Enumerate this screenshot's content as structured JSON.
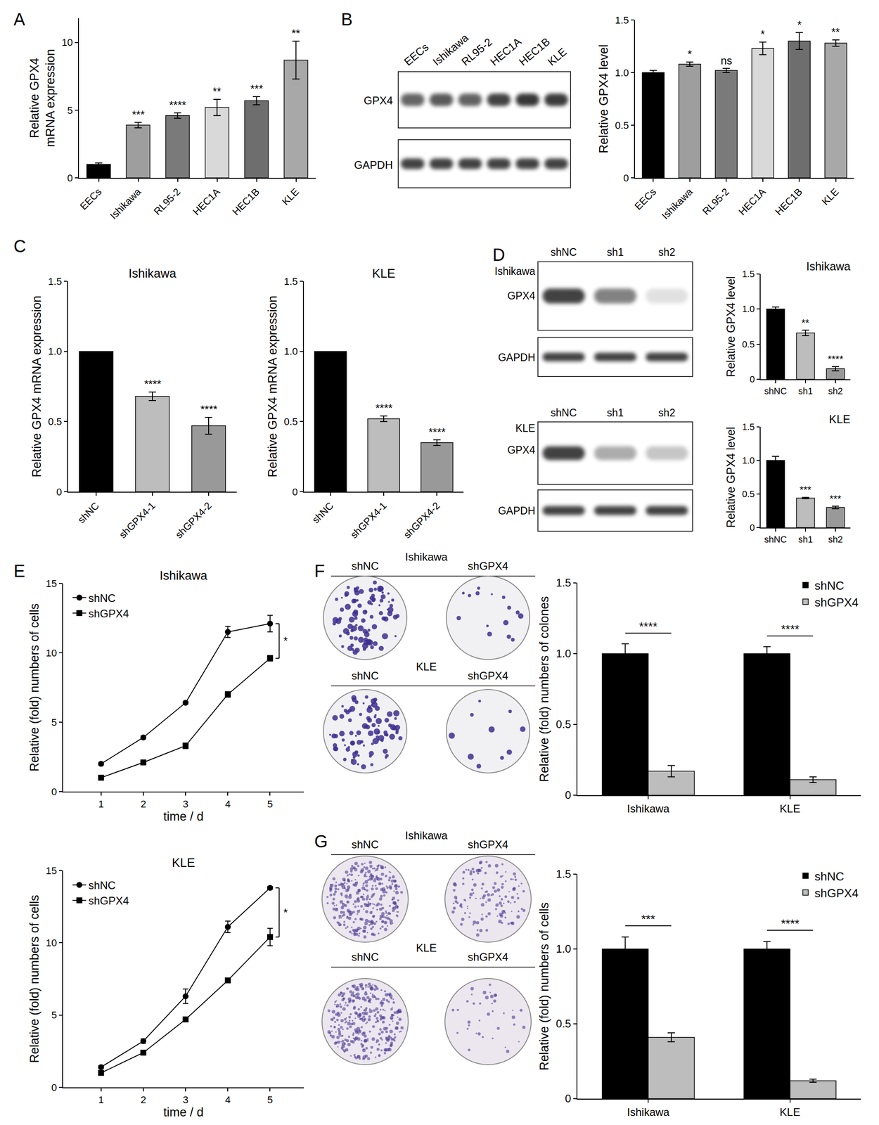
{
  "figure": {
    "panels": [
      "A",
      "B",
      "C",
      "D",
      "E",
      "F",
      "G"
    ],
    "blots": [
      {
        "lanes": [
          "EECs",
          "Ishikawa",
          "RL95-2",
          "HEC1A",
          "HEC1B",
          "KLE"
        ],
        "rows": [
          "GPX4",
          "GAPDH"
        ]
      },
      {
        "cell_line": "Ishikawa",
        "lanes": [
          "shNC",
          "sh1",
          "sh2"
        ],
        "rows": [
          "GPX4",
          "GAPDH"
        ]
      },
      {
        "cell_line": "KLE",
        "lanes": [
          "shNC",
          "sh1",
          "sh2"
        ],
        "rows": [
          "GPX4",
          "GAPDH"
        ]
      }
    ],
    "plates": [
      {
        "cell_line": "Ishikawa",
        "labels": [
          "shNC",
          "shGPX4"
        ]
      },
      {
        "cell_line": "KLE",
        "labels": [
          "shNC",
          "shGPX4"
        ]
      },
      {
        "cell_line": "Ishikawa",
        "labels": [
          "shNC",
          "shGPX4"
        ]
      },
      {
        "cell_line": "KLE",
        "labels": [
          "shNC",
          "shGPX4"
        ]
      }
    ]
  },
  "chart_data": [
    {
      "type": "bar",
      "ylabel": [
        "Relative GPX4",
        "mRNA expression"
      ],
      "categories": [
        "EECs",
        "Ishikawa",
        "RL95-2",
        "HEC1A",
        "HEC1B",
        "KLE"
      ],
      "values": [
        1.0,
        3.9,
        4.6,
        5.2,
        5.7,
        8.7
      ],
      "errors": [
        0.1,
        0.2,
        0.2,
        0.6,
        0.3,
        1.4
      ],
      "colors": [
        "#000000",
        "#9e9e9e",
        "#7a7a7a",
        "#d9d9d9",
        "#6e6e6e",
        "#a8a8a8"
      ],
      "annotations": [
        null,
        "***",
        "****",
        "**",
        "***",
        "**"
      ],
      "ylim": [
        0,
        11.8
      ],
      "yticks": [
        0,
        5,
        10
      ],
      "grid": false
    },
    {
      "type": "bar",
      "ylabel": "Relative GPX4 level",
      "categories": [
        "EECs",
        "Ishikawa",
        "RL95-2",
        "HEC1A",
        "HEC1B",
        "KLE"
      ],
      "values": [
        1.0,
        1.08,
        1.02,
        1.23,
        1.3,
        1.28
      ],
      "errors": [
        0.02,
        0.02,
        0.02,
        0.06,
        0.08,
        0.03
      ],
      "colors": [
        "#000000",
        "#9e9e9e",
        "#7a7a7a",
        "#d9d9d9",
        "#6e6e6e",
        "#a8a8a8"
      ],
      "annotations": [
        null,
        "*",
        "ns",
        "*",
        "*",
        "**"
      ],
      "ylim": [
        0,
        1.5
      ],
      "yticks": [
        0,
        0.5,
        {
          "value": 1,
          "label": "1.0"
        },
        1.5
      ],
      "grid": false
    },
    {
      "type": "bar",
      "title": "Ishikawa",
      "ylabel": "Relative GPX4 mRNA expression",
      "categories": [
        "shNC",
        "shGPX4-1",
        "shGPX4-2"
      ],
      "values": [
        1.0,
        0.68,
        0.47
      ],
      "errors": [
        null,
        0.03,
        0.06
      ],
      "colors": [
        "#000000",
        "#bdbdbd",
        "#999999"
      ],
      "annotations": [
        null,
        "****",
        "****"
      ],
      "ylim": [
        0,
        1.5
      ],
      "yticks": [
        0,
        0.5,
        {
          "value": 1,
          "label": "1.0"
        },
        1.5
      ],
      "grid": false
    },
    {
      "type": "bar",
      "title": "KLE",
      "ylabel": "Relative GPX4 mRNA expression",
      "categories": [
        "shNC",
        "shGPX4-1",
        "shGPX4-2"
      ],
      "values": [
        1.0,
        0.52,
        0.35
      ],
      "errors": [
        null,
        0.02,
        0.02
      ],
      "colors": [
        "#000000",
        "#bdbdbd",
        "#999999"
      ],
      "annotations": [
        null,
        "****",
        "****"
      ],
      "ylim": [
        0,
        1.5
      ],
      "yticks": [
        0,
        0.5,
        {
          "value": 1,
          "label": "1.0"
        },
        1.5
      ],
      "grid": false
    },
    {
      "type": "bar",
      "title": "Ishikawa",
      "ylabel": "Relative GPX4 level",
      "categories": [
        "shNC",
        "sh1",
        "sh2"
      ],
      "values": [
        1.0,
        0.66,
        0.15
      ],
      "errors": [
        0.03,
        0.04,
        0.03
      ],
      "colors": [
        "#000000",
        "#bdbdbd",
        "#999999"
      ],
      "annotations": [
        null,
        "**",
        "****"
      ],
      "ylim": [
        0,
        1.5
      ],
      "yticks": [
        0,
        0.5,
        {
          "value": 1,
          "label": "1.0"
        },
        1.5
      ],
      "grid": false
    },
    {
      "type": "bar",
      "title": "KLE",
      "ylabel": "Relative GPX4 level",
      "categories": [
        "shNC",
        "sh1",
        "sh2"
      ],
      "values": [
        1.0,
        0.44,
        0.3
      ],
      "errors": [
        0.06,
        0.01,
        0.02
      ],
      "colors": [
        "#000000",
        "#bdbdbd",
        "#999999"
      ],
      "annotations": [
        null,
        "***",
        "***"
      ],
      "ylim": [
        0,
        1.5
      ],
      "yticks": [
        0,
        0.5,
        {
          "value": 1,
          "label": "1.0"
        },
        1.5
      ],
      "grid": false
    },
    {
      "type": "line",
      "title": "Ishikawa",
      "xlabel": "time / d",
      "ylabel": "Relative (fold) numbers of cells",
      "x": [
        1,
        2,
        3,
        4,
        5
      ],
      "series": [
        {
          "name": "shNC",
          "color": "#000000",
          "marker": "circle",
          "values": [
            2.0,
            3.9,
            6.4,
            11.5,
            12.1
          ],
          "errors": [
            0.1,
            0.1,
            0.1,
            0.4,
            0.6
          ]
        },
        {
          "name": "shGPX4",
          "color": "#000000",
          "marker": "square",
          "values": [
            1.0,
            2.1,
            3.3,
            7.0,
            9.6
          ],
          "errors": [
            0.1,
            0.1,
            0.2,
            0.2,
            0.2
          ]
        }
      ],
      "annotations": [
        "*"
      ],
      "legend": "upper left",
      "xlim": [
        0.1,
        5.8
      ],
      "xticks": [
        1,
        2,
        3,
        4,
        5
      ],
      "ylim": [
        0,
        15
      ],
      "yticks": [
        0,
        5,
        10,
        15
      ],
      "grid": false
    },
    {
      "type": "line",
      "title": "KLE",
      "xlabel": "time / d",
      "ylabel": "Relative (fold) numbers of cells",
      "x": [
        1,
        2,
        3,
        4,
        5
      ],
      "series": [
        {
          "name": "shNC",
          "color": "#000000",
          "marker": "circle",
          "values": [
            1.4,
            3.2,
            6.3,
            11.1,
            13.8
          ],
          "errors": [
            0.1,
            0.15,
            0.5,
            0.4,
            0.1
          ]
        },
        {
          "name": "shGPX4",
          "color": "#000000",
          "marker": "square",
          "values": [
            1.0,
            2.4,
            4.7,
            7.4,
            10.4
          ],
          "errors": [
            0.1,
            0.1,
            0.15,
            0.15,
            0.6
          ]
        }
      ],
      "annotations": [
        "*"
      ],
      "legend": "upper left",
      "xlim": [
        0.1,
        5.8
      ],
      "xticks": [
        1,
        2,
        3,
        4,
        5
      ],
      "ylim": [
        0,
        15
      ],
      "yticks": [
        0,
        5,
        10,
        15
      ],
      "grid": false
    },
    {
      "type": "bar",
      "ylabel": "Relative (fold) numbers of colones",
      "categories": [
        "Ishikawa",
        "KLE"
      ],
      "series": [
        {
          "name": "shNC",
          "color": "#000000",
          "values": [
            1.0,
            1.0
          ],
          "errors": [
            0.07,
            0.05
          ]
        },
        {
          "name": "shGPX4",
          "color": "#bdbdbd",
          "values": [
            0.17,
            0.11
          ],
          "errors": [
            0.04,
            0.02
          ]
        }
      ],
      "annotations": [
        "****",
        "****"
      ],
      "legend": "upper right",
      "ylim": [
        0,
        1.5
      ],
      "yticks": [
        0,
        0.5,
        {
          "value": 1,
          "label": "1.0"
        },
        1.5
      ],
      "grid": false
    },
    {
      "type": "bar",
      "ylabel": "Relative (fold) numbers of cells",
      "categories": [
        "Ishikawa",
        "KLE"
      ],
      "series": [
        {
          "name": "shNC",
          "color": "#000000",
          "values": [
            1.0,
            1.0
          ],
          "errors": [
            0.08,
            0.05
          ]
        },
        {
          "name": "shGPX4",
          "color": "#bdbdbd",
          "values": [
            0.41,
            0.12
          ],
          "errors": [
            0.03,
            0.01
          ]
        }
      ],
      "annotations": [
        "***",
        "****"
      ],
      "legend": "upper right",
      "ylim": [
        0,
        1.5
      ],
      "yticks": [
        0,
        0.5,
        {
          "value": 1,
          "label": "1.0"
        },
        1.5
      ],
      "grid": false
    }
  ]
}
